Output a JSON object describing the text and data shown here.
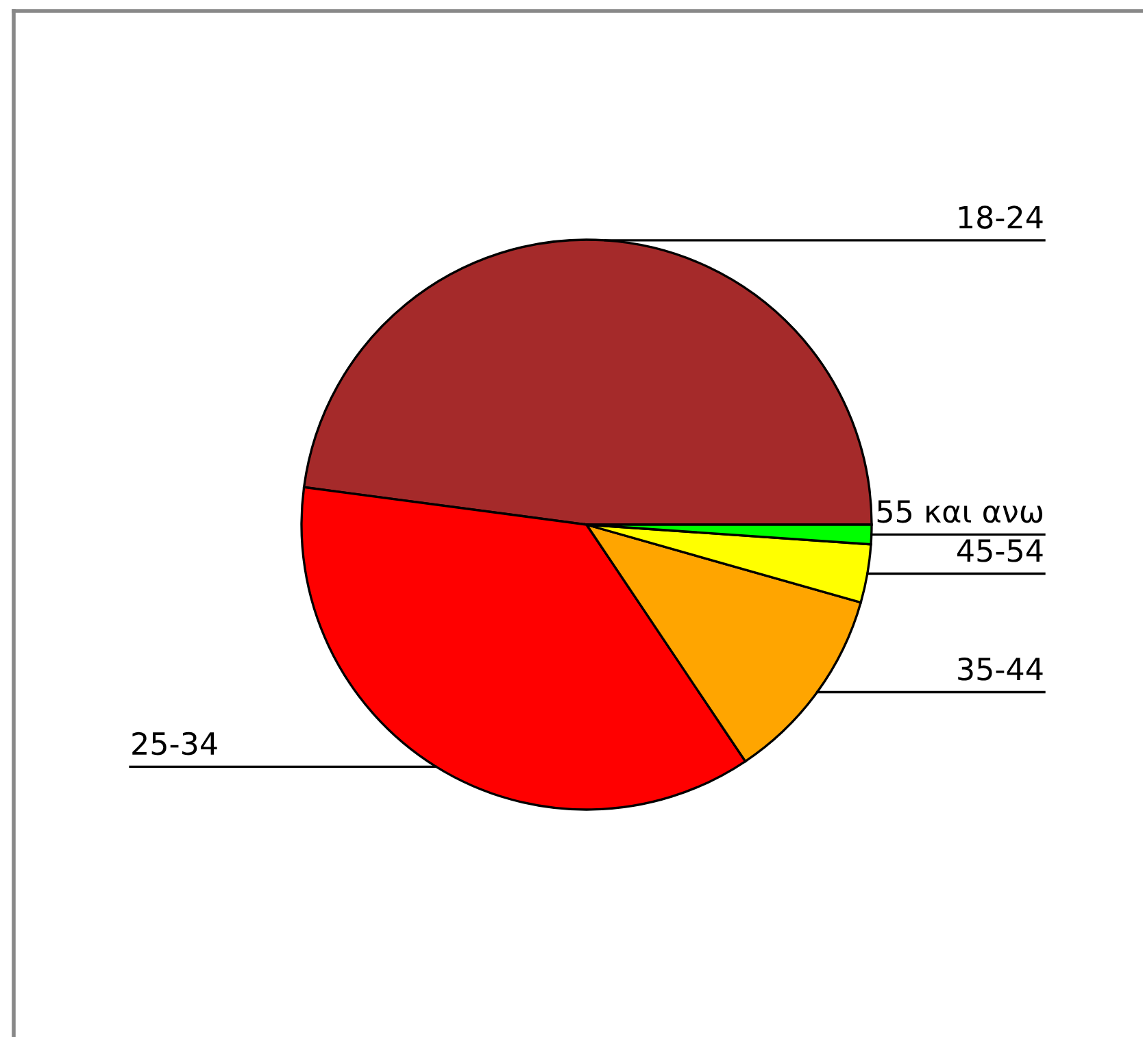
{
  "chart_data": {
    "type": "pie",
    "categories": [
      "18-24",
      "25-34",
      "35-44",
      "45-54",
      "55 και ανω"
    ],
    "values": [
      47.9,
      36.5,
      11.2,
      3.3,
      1.1
    ],
    "colors": [
      "#a52a2a",
      "#ff0000",
      "#ffa500",
      "#ffff00",
      "#00ff00"
    ],
    "legend": false
  }
}
